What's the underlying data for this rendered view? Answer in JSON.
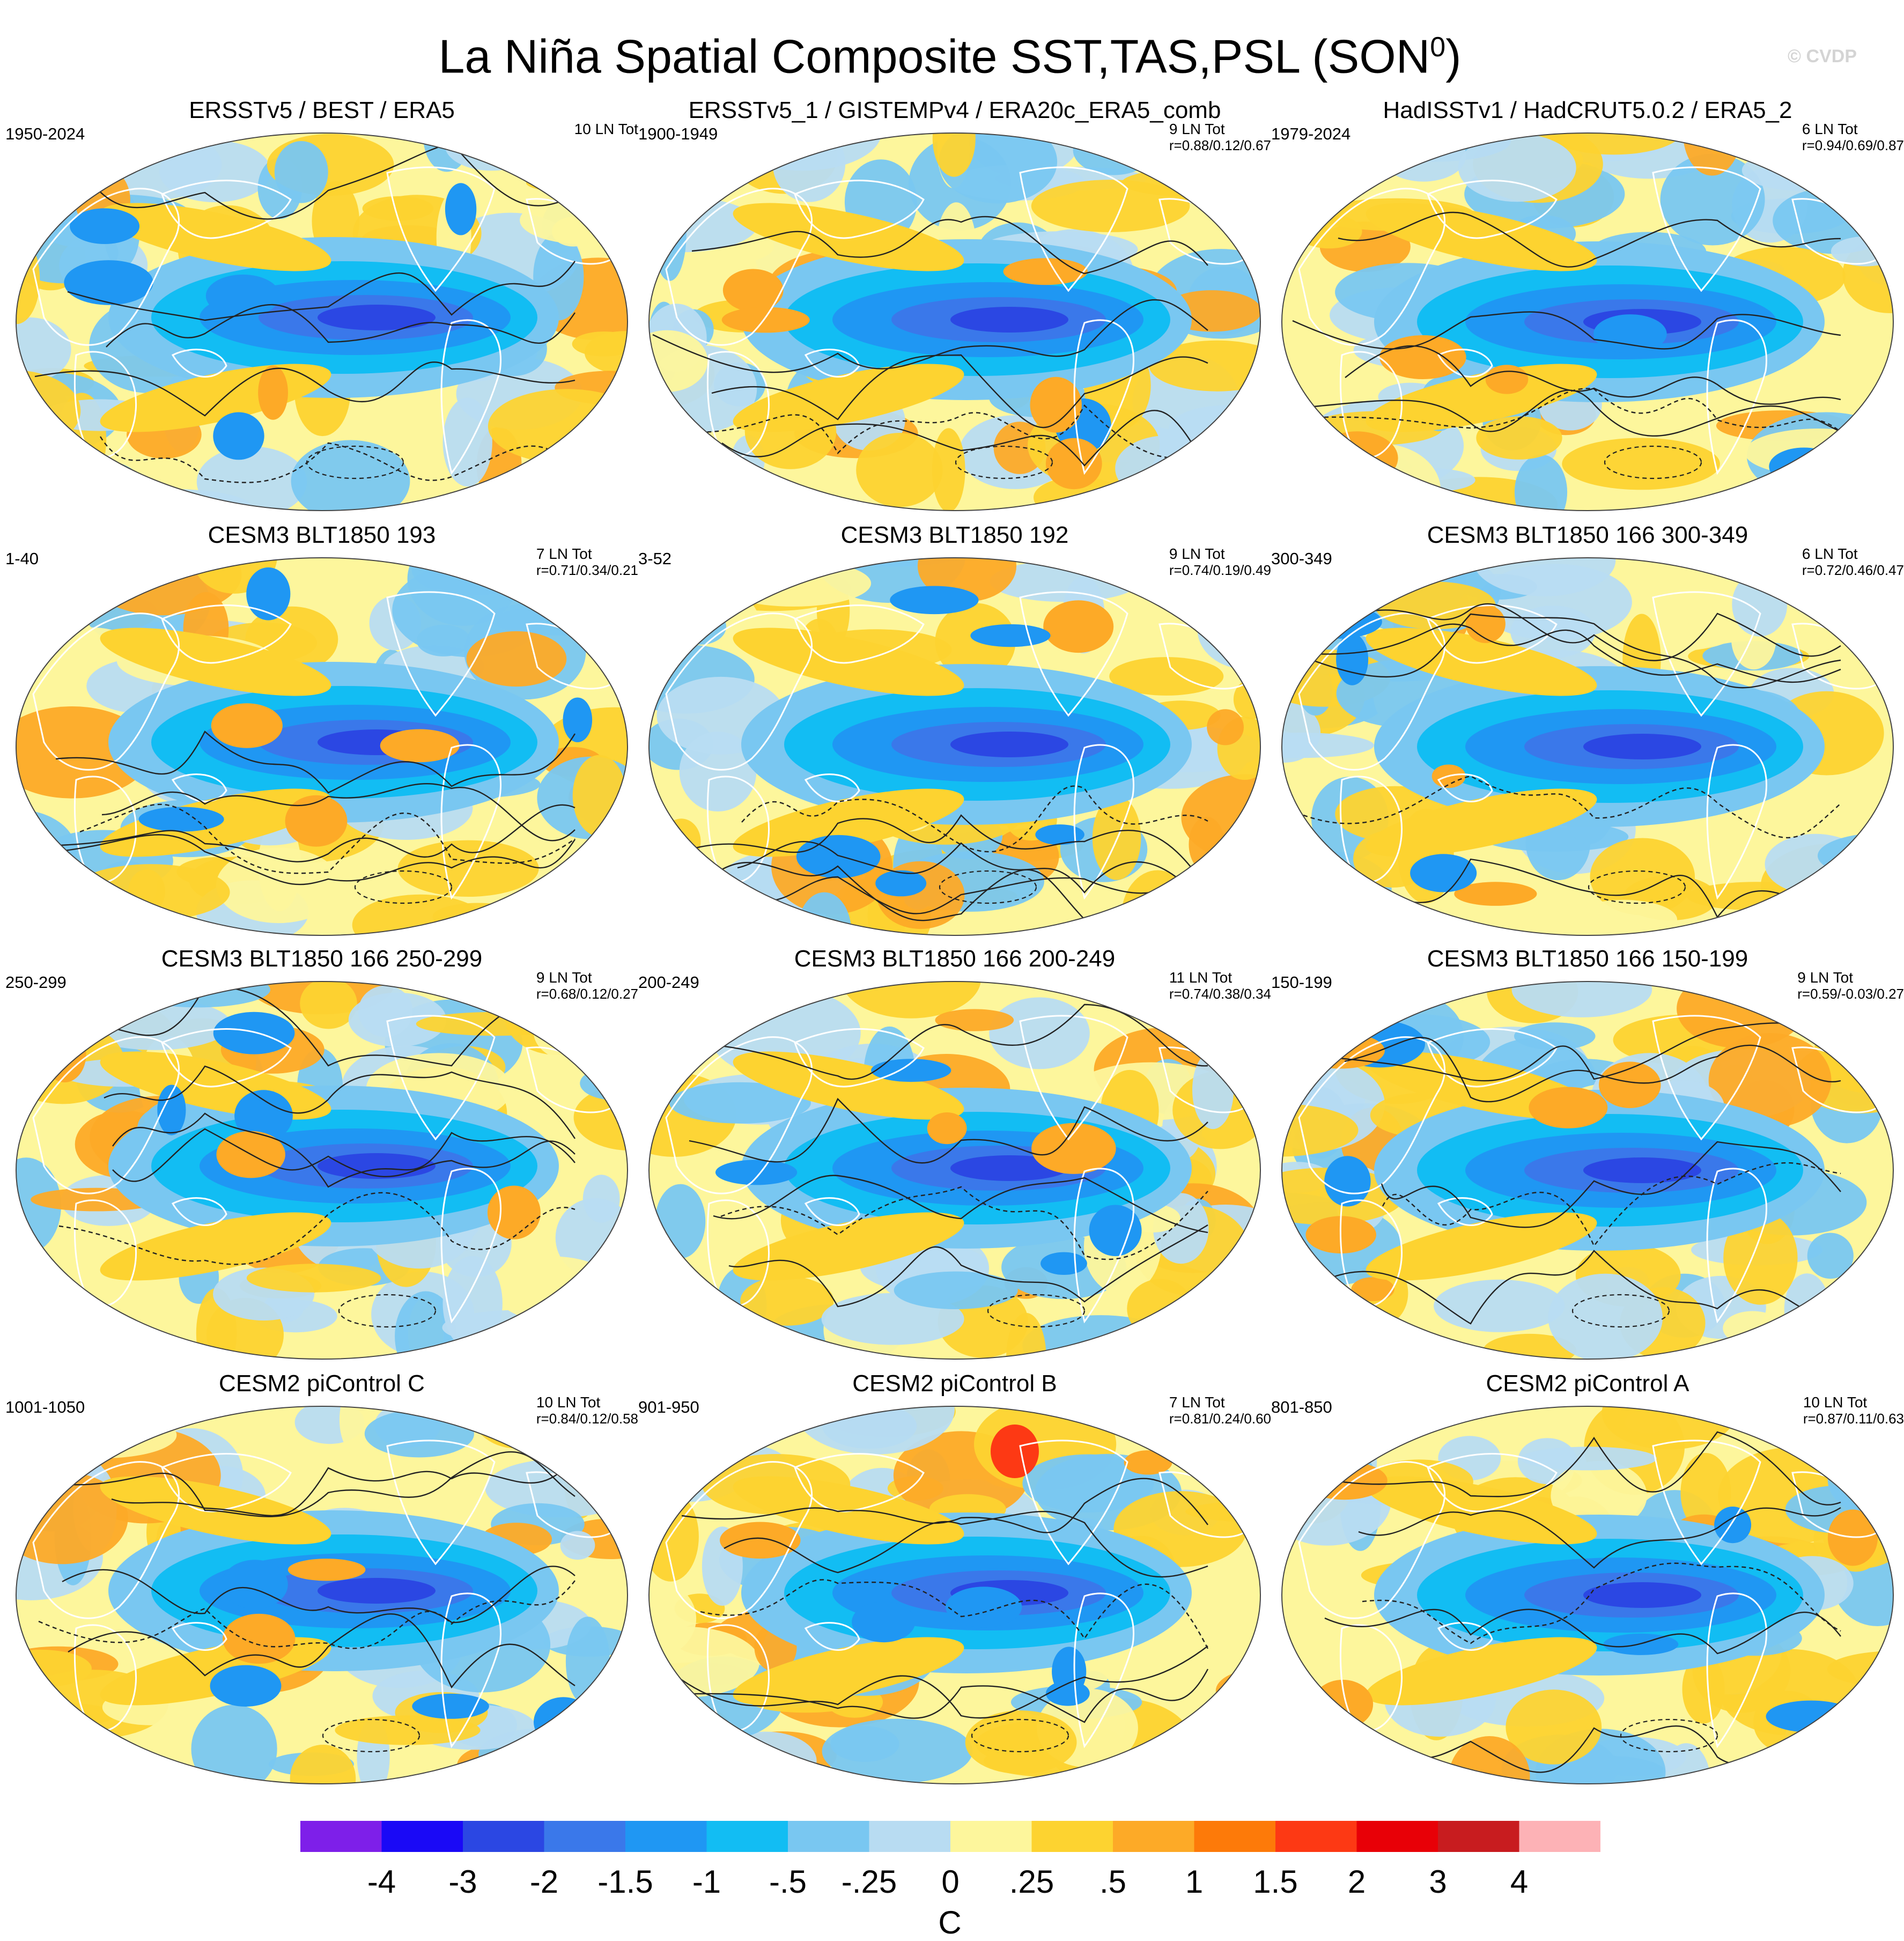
{
  "title": "La Niña Spatial Composite SST,TAS,PSL (SON",
  "title_sup": "0",
  "title_end": ")",
  "credit": "© CVDP",
  "panels": [
    {
      "title": "ERSSTv5 / BEST / ERA5",
      "period": "1950-2024",
      "count": "10 LN Tot",
      "r": "",
      "variant": 0
    },
    {
      "title": "ERSSTv5_1 / GISTEMPv4 / ERA20c_ERA5_comb",
      "period": "1900-1949",
      "count": "9 LN Tot",
      "r": "r=0.88/0.12/0.67",
      "variant": 1
    },
    {
      "title": "HadISSTv1 / HadCRUT5.0.2 / ERA5_2",
      "period": "1979-2024",
      "count": "6 LN Tot",
      "r": "r=0.94/0.69/0.87",
      "variant": 2
    },
    {
      "title": "CESM3 BLT1850 193",
      "period": "1-40",
      "count": "7 LN Tot",
      "r": "r=0.71/0.34/0.21",
      "variant": 3
    },
    {
      "title": "CESM3 BLT1850 192",
      "period": "3-52",
      "count": "9 LN Tot",
      "r": "r=0.74/0.19/0.49",
      "variant": 4
    },
    {
      "title": "CESM3 BLT1850 166 300-349",
      "period": "300-349",
      "count": "6 LN Tot",
      "r": "r=0.72/0.46/0.47",
      "variant": 5
    },
    {
      "title": "CESM3 BLT1850 166 250-299",
      "period": "250-299",
      "count": "9 LN Tot",
      "r": "r=0.68/0.12/0.27",
      "variant": 6
    },
    {
      "title": "CESM3 BLT1850 166 200-249",
      "period": "200-249",
      "count": "11 LN Tot",
      "r": "r=0.74/0.38/0.34",
      "variant": 7
    },
    {
      "title": "CESM3 BLT1850 166 150-199",
      "period": "150-199",
      "count": "9 LN Tot",
      "r": "r=0.59/-0.03/0.27",
      "variant": 8
    },
    {
      "title": "CESM2 piControl C",
      "period": "1001-1050",
      "count": "10 LN Tot",
      "r": "r=0.84/0.12/0.58",
      "variant": 9
    },
    {
      "title": "CESM2 piControl B",
      "period": "901-950",
      "count": "7 LN Tot",
      "r": "r=0.81/0.24/0.60",
      "variant": 10
    },
    {
      "title": "CESM2 piControl A",
      "period": "801-850",
      "count": "10 LN Tot",
      "r": "r=0.87/0.11/0.63",
      "variant": 11
    }
  ],
  "colorbar": {
    "colors": [
      "#7e1fe9",
      "#1a09f6",
      "#2b47e3",
      "#3a78ea",
      "#1f97f3",
      "#12bdf3",
      "#79c7f1",
      "#b8dcf2",
      "#fdf69c",
      "#fdd330",
      "#fdaa27",
      "#fd7a09",
      "#fd3914",
      "#e80007",
      "#c81c1f",
      "#fdb2b6"
    ],
    "labels": [
      "-4",
      "-3",
      "-2",
      "-1.5",
      "-1",
      "-.5",
      "-.25",
      "0",
      ".25",
      ".5",
      "1",
      "1.5",
      "2",
      "3",
      "4"
    ],
    "unit": "C"
  }
}
